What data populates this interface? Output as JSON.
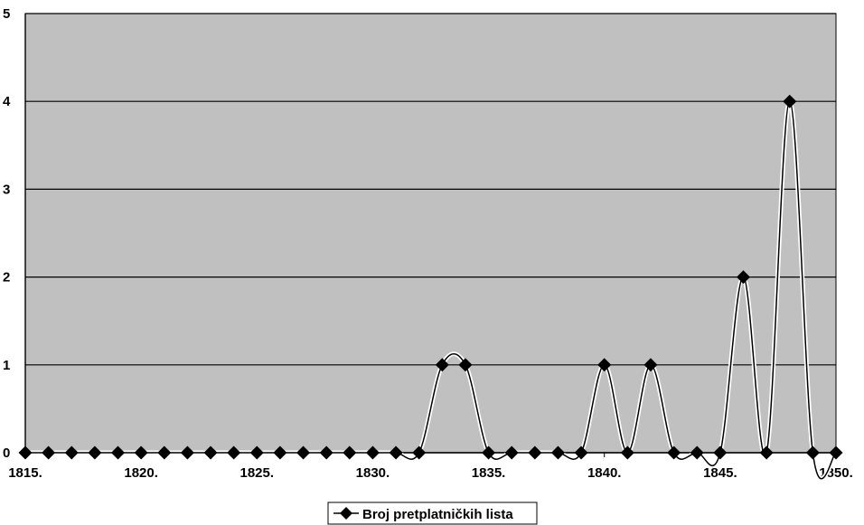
{
  "chart_data": {
    "type": "line",
    "title": "",
    "xlabel": "",
    "ylabel": "",
    "x": [
      1815,
      1816,
      1817,
      1818,
      1819,
      1820,
      1821,
      1822,
      1823,
      1824,
      1825,
      1826,
      1827,
      1828,
      1829,
      1830,
      1831,
      1832,
      1833,
      1834,
      1835,
      1836,
      1837,
      1838,
      1839,
      1840,
      1841,
      1842,
      1843,
      1844,
      1845,
      1846,
      1847,
      1848,
      1849,
      1850
    ],
    "series": [
      {
        "name": "Broj pretplatničkih lista",
        "values": [
          0,
          0,
          0,
          0,
          0,
          0,
          0,
          0,
          0,
          0,
          0,
          0,
          0,
          0,
          0,
          0,
          0,
          0,
          1,
          1,
          0,
          0,
          0,
          0,
          0,
          1,
          0,
          1,
          0,
          0,
          0,
          2,
          0,
          4,
          0,
          0
        ]
      }
    ],
    "xlim": [
      1815,
      1850
    ],
    "ylim": [
      0,
      5
    ],
    "x_ticks": [
      "1815.",
      "1820.",
      "1825.",
      "1830.",
      "1835.",
      "1840.",
      "1845.",
      "1850."
    ],
    "y_ticks": [
      "0",
      "1",
      "2",
      "3",
      "4",
      "5"
    ],
    "grid": "horizontal",
    "legend_position": "bottom-center",
    "colors": {
      "plot_background": "#c0c0c0",
      "line": "#000000",
      "marker": "#000000",
      "grid": "#000000"
    }
  }
}
